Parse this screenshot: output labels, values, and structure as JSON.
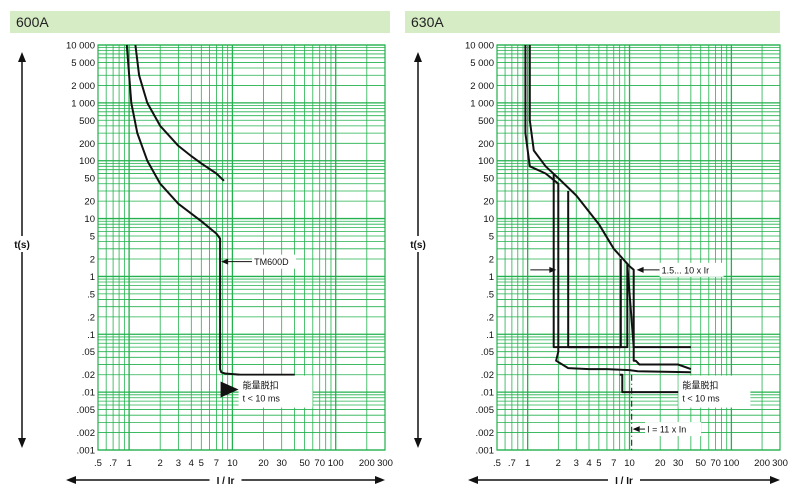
{
  "chart_data": [
    {
      "type": "line",
      "title": "600A",
      "xlabel": "I / Ir",
      "ylabel": "t(s)",
      "scale": "log-log",
      "xlim": [
        0.5,
        300
      ],
      "ylim": [
        0.001,
        10000
      ],
      "grid": true,
      "xticks": [
        ".5",
        ".7",
        "1",
        "2",
        "3",
        "4",
        "5",
        "7",
        "10",
        "20",
        "30",
        "50",
        "70",
        "100",
        "200",
        "300"
      ],
      "yticks": [
        "10 000",
        "5 000",
        "2 000",
        "1 000",
        "500",
        "200",
        "100",
        "50",
        "20",
        "10",
        "5",
        "2",
        "1",
        ".5",
        ".2",
        ".1",
        ".05",
        ".02",
        ".01",
        ".005",
        ".002",
        ".001"
      ],
      "series": [
        {
          "x": [
            1.15,
            1.25,
            1.5,
            2,
            3,
            4,
            5,
            7,
            8.3,
            8.3
          ],
          "y": [
            10000,
            3000,
            1000,
            400,
            180,
            120,
            90,
            60,
            45,
            45
          ]
        },
        {
          "x": [
            0.95,
            1.05,
            1.2,
            1.5,
            2,
            3,
            5,
            7,
            7.6,
            7.6,
            7.8,
            8.5,
            12,
            40
          ],
          "y": [
            10000,
            1000,
            300,
            100,
            40,
            18,
            9,
            5.5,
            4.5,
            0.025,
            0.022,
            0.021,
            0.02,
            0.02
          ]
        }
      ],
      "annotations": [
        {
          "label": "TM600D",
          "x": 7.6,
          "y": 1.8
        },
        {
          "label": "能量脱扣",
          "x": 12,
          "y": 0.012
        },
        {
          "label": "t < 10 ms",
          "x": 12,
          "y": 0.007
        }
      ]
    },
    {
      "type": "line",
      "title": "630A",
      "xlabel": "I / Ir",
      "ylabel": "t(s)",
      "scale": "log-log",
      "xlim": [
        0.5,
        300
      ],
      "ylim": [
        0.001,
        10000
      ],
      "grid": true,
      "xticks": [
        ".5",
        ".7",
        "1",
        "2",
        "3",
        "4",
        "5",
        "7",
        "10",
        "20",
        "30",
        "50",
        "70",
        "100",
        "200",
        "300"
      ],
      "yticks": [
        "10 000",
        "5 000",
        "2 000",
        "1 000",
        "500",
        "200",
        "100",
        "50",
        "20",
        "10",
        "5",
        "2",
        "1",
        ".5",
        ".2",
        ".1",
        ".05",
        ".02",
        ".01",
        ".005",
        ".002",
        ".001"
      ],
      "series": [
        {
          "x": [
            1.05,
            1.05,
            1.15,
            1.5,
            2,
            3,
            5,
            7,
            10,
            11,
            11,
            11.5,
            12.5,
            20,
            30,
            40
          ],
          "y": [
            10000,
            500,
            150,
            80,
            50,
            25,
            8,
            3,
            1.5,
            1.3,
            0.035,
            0.035,
            0.03,
            0.03,
            0.03,
            0.025
          ]
        },
        {
          "x": [
            0.95,
            0.95,
            1.05,
            1.5,
            2,
            2,
            1.9,
            2.5,
            4,
            6,
            10,
            12,
            40
          ],
          "y": [
            10000,
            300,
            80,
            60,
            40,
            0.05,
            0.035,
            0.026,
            0.025,
            0.025,
            0.024,
            0.023,
            0.022
          ]
        },
        {
          "x": [
            1.8,
            1.8,
            2,
            3,
            5,
            7,
            8,
            9.5,
            9.5,
            11,
            12,
            40
          ],
          "y": [
            60,
            0.06,
            0.06,
            0.06,
            0.06,
            0.06,
            0.06,
            0.06,
            1.6,
            0.06,
            0.06,
            0.06
          ]
        },
        {
          "x": [
            2.5,
            2.5,
            3,
            4,
            6,
            8.2,
            8.2
          ],
          "y": [
            30,
            0.06,
            0.06,
            0.06,
            0.06,
            0.06,
            2
          ]
        },
        {
          "x": [
            8,
            8.5,
            8.5,
            10,
            13,
            20,
            45
          ],
          "y": [
            0.02,
            0.02,
            0.01,
            0.01,
            0.01,
            0.01,
            0.01
          ]
        }
      ],
      "annotations": [
        {
          "label": "1.5... 10 x Ir",
          "x": 12,
          "y": 1.3
        },
        {
          "label": "能量脱扣",
          "x": 33,
          "y": 0.012
        },
        {
          "label": "t < 10 ms",
          "x": 33,
          "y": 0.007
        },
        {
          "label": "I = 11 x In",
          "x": 13,
          "y": 0.0023
        }
      ]
    }
  ],
  "colors": {
    "grid": "#22b14c",
    "band": "#d6ecc4",
    "curve": "#111111"
  }
}
